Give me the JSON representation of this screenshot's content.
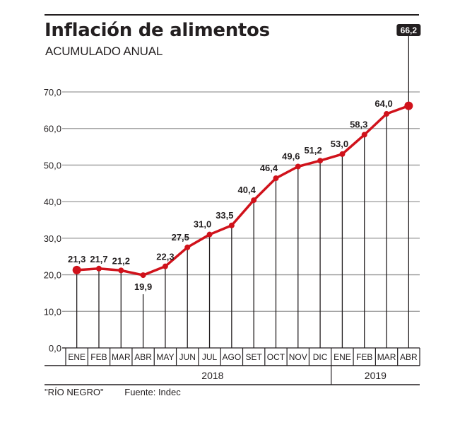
{
  "header": {
    "title": "Inflación de alimentos",
    "subtitle": "ACUMULADO ANUAL"
  },
  "footer": {
    "credit": "\"RÍO NEGRO\"",
    "source": "Fuente: Indec"
  },
  "colors": {
    "line": "#d0121b",
    "text": "#231f20",
    "grid": "#9a9a9a",
    "badge_bg": "#231f20"
  },
  "chart_data": {
    "type": "line",
    "title": "Inflación de alimentos",
    "subtitle": "ACUMULADO ANUAL",
    "xlabel": "",
    "ylabel": "",
    "ylim": [
      0,
      70
    ],
    "yticks": [
      "0,0",
      "10,0",
      "20,0",
      "30,0",
      "40,0",
      "50,0",
      "60,0",
      "70,0"
    ],
    "ytick_values": [
      0,
      10,
      20,
      30,
      40,
      50,
      60,
      70
    ],
    "grid": true,
    "categories": [
      "ENE",
      "FEB",
      "MAR",
      "ABR",
      "MAY",
      "JUN",
      "JUL",
      "AGO",
      "SET",
      "OCT",
      "NOV",
      "DIC",
      "ENE",
      "FEB",
      "MAR",
      "ABR"
    ],
    "years": [
      {
        "label": "2018",
        "span": 12
      },
      {
        "label": "2019",
        "span": 4
      }
    ],
    "series": [
      {
        "name": "Inflación de alimentos acumulada anual",
        "values": [
          21.3,
          21.7,
          21.2,
          19.9,
          22.3,
          27.5,
          31.0,
          33.5,
          40.4,
          46.4,
          49.6,
          51.2,
          53.0,
          58.3,
          64.0,
          66.2
        ],
        "labels": [
          "21,3",
          "21,7",
          "21,2",
          "19,9",
          "22,3",
          "27,5",
          "31,0",
          "33,5",
          "40,4",
          "46,4",
          "49,6",
          "51,2",
          "53,0",
          "58,3",
          "64,0",
          "66,2"
        ]
      }
    ],
    "highlight_last": true,
    "source": "Fuente: Indec"
  }
}
